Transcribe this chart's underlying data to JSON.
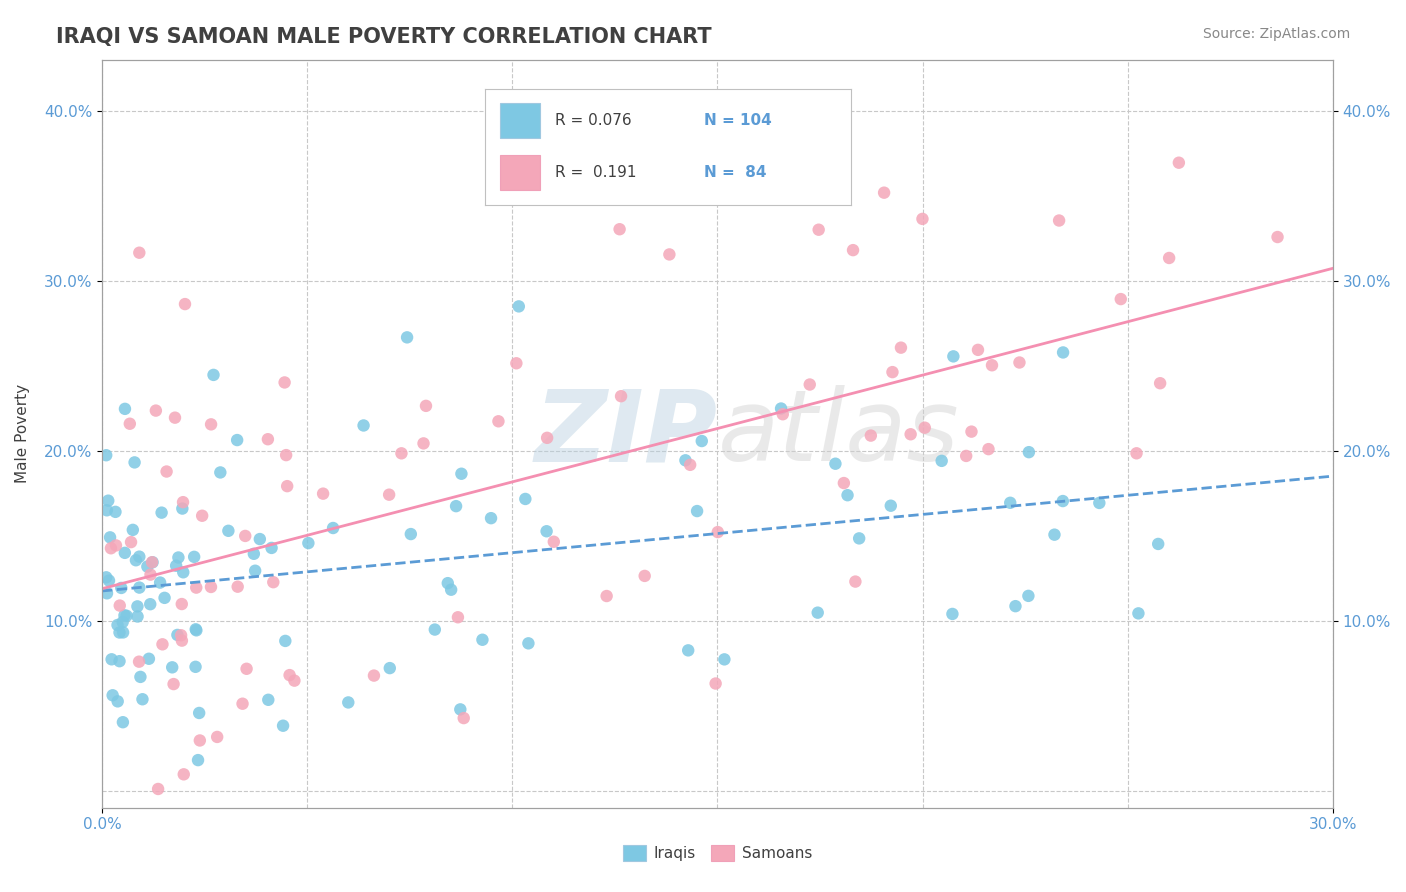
{
  "title": "IRAQI VS SAMOAN MALE POVERTY CORRELATION CHART",
  "source_text": "Source: ZipAtlas.com",
  "ylabel": "Male Poverty",
  "xlim": [
    0.0,
    0.3
  ],
  "ylim": [
    -0.01,
    0.43
  ],
  "iraqis_color": "#7ec8e3",
  "samoans_color": "#f4a7b9",
  "iraqis_line_color": "#5b9bd5",
  "samoans_line_color": "#f48fb1",
  "background_color": "#ffffff",
  "grid_color": "#c8c8c8",
  "title_color": "#404040",
  "axis_label_color": "#5b9bd5"
}
